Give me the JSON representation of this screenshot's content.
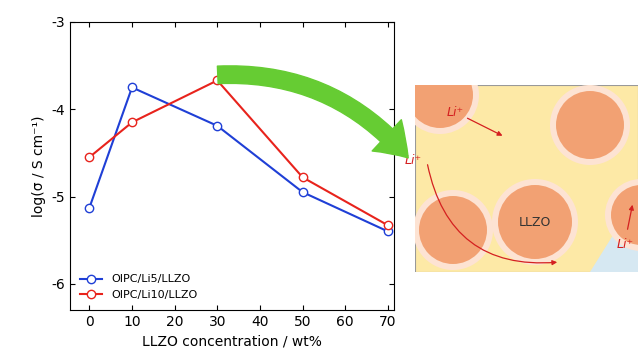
{
  "chart_data": {
    "type": "line",
    "x_label": "LLZO concentration / wt%",
    "y_label": "log(σ / S cm⁻¹)",
    "x": [
      0,
      10,
      30,
      50,
      70
    ],
    "series": [
      {
        "name": "OIPC/Li5/LLZO",
        "color": "#1f3fd6",
        "marker": "o",
        "line_style": "solid",
        "values": [
          -5.13,
          -3.75,
          -4.19,
          -4.95,
          -5.4
        ]
      },
      {
        "name": "OIPC/Li10/LLZO",
        "color": "#e8231c",
        "marker": "o",
        "line_style": "solid",
        "values": [
          -4.55,
          -4.15,
          -3.67,
          -4.78,
          -5.33
        ]
      }
    ],
    "xlim": [
      -4.5,
      71.5
    ],
    "xticks": [
      0,
      10,
      20,
      30,
      40,
      50,
      60,
      70
    ],
    "ylim": [
      -6.3,
      -3
    ],
    "yticks": [
      -6,
      -5,
      -4,
      -3
    ],
    "legend": "lower left",
    "grid": false
  },
  "diagram": {
    "particle_label": "LLZO",
    "ion_labels": [
      "Li⁺",
      "Li⁺",
      "Li⁺"
    ]
  }
}
